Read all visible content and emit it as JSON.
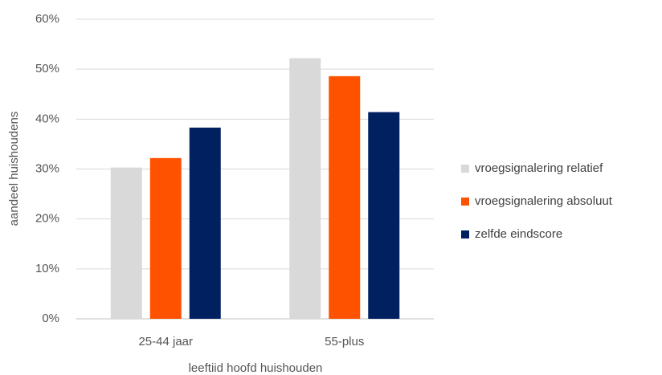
{
  "chart_data": {
    "type": "bar",
    "categories": [
      "25-44 jaar",
      "55-plus"
    ],
    "series": [
      {
        "name": "vroegsignalering relatief",
        "values": [
          30.3,
          52.2
        ],
        "color": "#d9d9d9"
      },
      {
        "name": "vroegsignalering absoluut",
        "values": [
          32.2,
          48.6
        ],
        "color": "#ff5200"
      },
      {
        "name": "zelfde eindscore",
        "values": [
          38.3,
          41.4
        ],
        "color": "#002060"
      }
    ],
    "ylim": [
      0,
      60
    ],
    "yticks": [
      "0%",
      "10%",
      "20%",
      "30%",
      "40%",
      "50%",
      "60%"
    ],
    "xlabel": "leeftiid hoofd huishouden",
    "ylabel": "aandeel huishoudens",
    "grid": true,
    "legend_position": "right"
  }
}
